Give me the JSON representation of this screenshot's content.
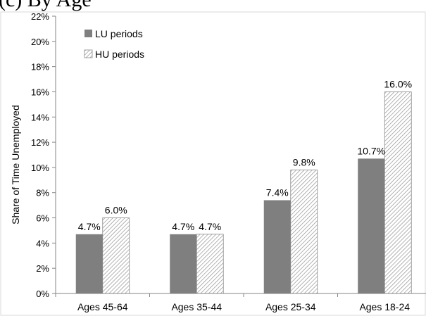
{
  "header": {
    "cropped_title": "(c) By Age"
  },
  "chart_data": {
    "type": "bar",
    "categories": [
      "Ages 45-64",
      "Ages 35-44",
      "Ages 25-34",
      "Ages 18-24"
    ],
    "series": [
      {
        "name": "LU periods",
        "values": [
          4.7,
          4.7,
          7.4,
          10.7
        ],
        "labels": [
          "4.7%",
          "4.7%",
          "7.4%",
          "10.7%"
        ],
        "color": "#7f7f7f",
        "pattern": "solid"
      },
      {
        "name": "HU periods",
        "values": [
          6.0,
          4.7,
          9.8,
          16.0
        ],
        "labels": [
          "6.0%",
          "4.7%",
          "9.8%",
          "16.0%"
        ],
        "color": "#ffffff",
        "pattern": "diagonal-hatch"
      }
    ],
    "title": "",
    "xlabel": "",
    "ylabel": "Share of Time Unemployed",
    "ylim": [
      0,
      22
    ],
    "yticks": [
      0,
      2,
      4,
      6,
      8,
      10,
      12,
      14,
      16,
      18,
      20,
      22
    ],
    "ytick_labels": [
      "0%",
      "2%",
      "4%",
      "6%",
      "8%",
      "10%",
      "12%",
      "14%",
      "16%",
      "18%",
      "20%",
      "22%"
    ],
    "grid": false,
    "legend_position": "top-left"
  }
}
